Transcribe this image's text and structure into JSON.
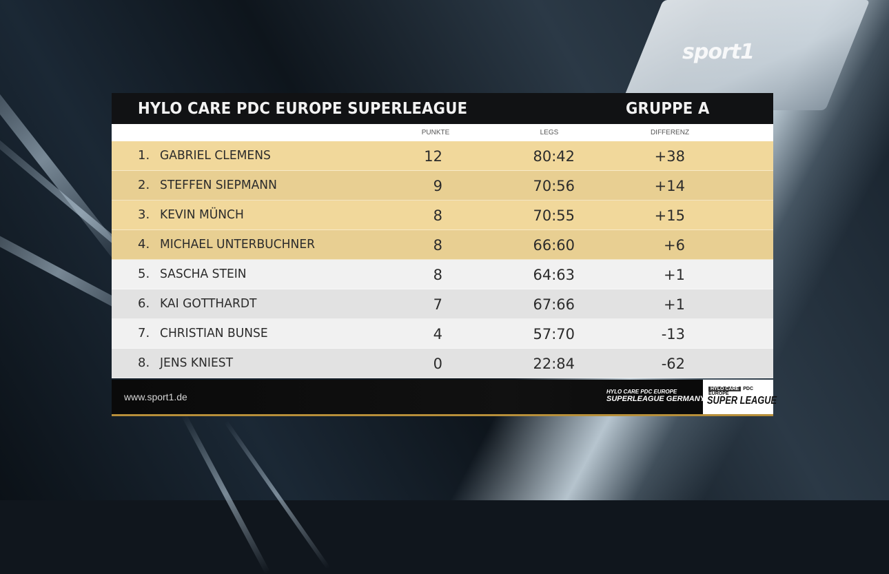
{
  "broadcaster_logo": "sport1",
  "header": {
    "title": "HYLO CARE PDC EUROPE SUPERLEAGUE",
    "group": "GRUPPE A"
  },
  "columns": {
    "points": "PUNKTE",
    "legs": "LEGS",
    "difference": "DIFFERENZ"
  },
  "standings": [
    {
      "rank": "1.",
      "name": "GABRIEL CLEMENS",
      "points": "12",
      "legs": "80:42",
      "diff": "+38",
      "highlight": true
    },
    {
      "rank": "2.",
      "name": "STEFFEN SIEPMANN",
      "points": "9",
      "legs": "70:56",
      "diff": "+14",
      "highlight": true
    },
    {
      "rank": "3.",
      "name": "KEVIN MÜNCH",
      "points": "8",
      "legs": "70:55",
      "diff": "+15",
      "highlight": true
    },
    {
      "rank": "4.",
      "name": "MICHAEL UNTERBUCHNER",
      "points": "8",
      "legs": "66:60",
      "diff": "+6",
      "highlight": true
    },
    {
      "rank": "5.",
      "name": "SASCHA STEIN",
      "points": "8",
      "legs": "64:63",
      "diff": "+1",
      "highlight": false
    },
    {
      "rank": "6.",
      "name": "KAI GOTTHARDT",
      "points": "7",
      "legs": "67:66",
      "diff": "+1",
      "highlight": false
    },
    {
      "rank": "7.",
      "name": "CHRISTIAN BUNSE",
      "points": "4",
      "legs": "57:70",
      "diff": "-13",
      "highlight": false
    },
    {
      "rank": "8.",
      "name": "JENS KNIEST",
      "points": "0",
      "legs": "22:84",
      "diff": "-62",
      "highlight": false
    }
  ],
  "footer": {
    "url": "www.sport1.de",
    "league_line1": "HYLO CARE PDC EUROPE",
    "league_line2": "SUPERLEAGUE GERMANY",
    "badge_top_left": "HYLO CARE",
    "badge_top_right": "PDC EUROPE",
    "badge_main": "SUPER LEAGUE"
  },
  "colors": {
    "highlight_row": "#f1d89b",
    "plain_row": "#f1f1f1",
    "title_bar": "#111214",
    "footer_accent": "#b78f3a"
  }
}
